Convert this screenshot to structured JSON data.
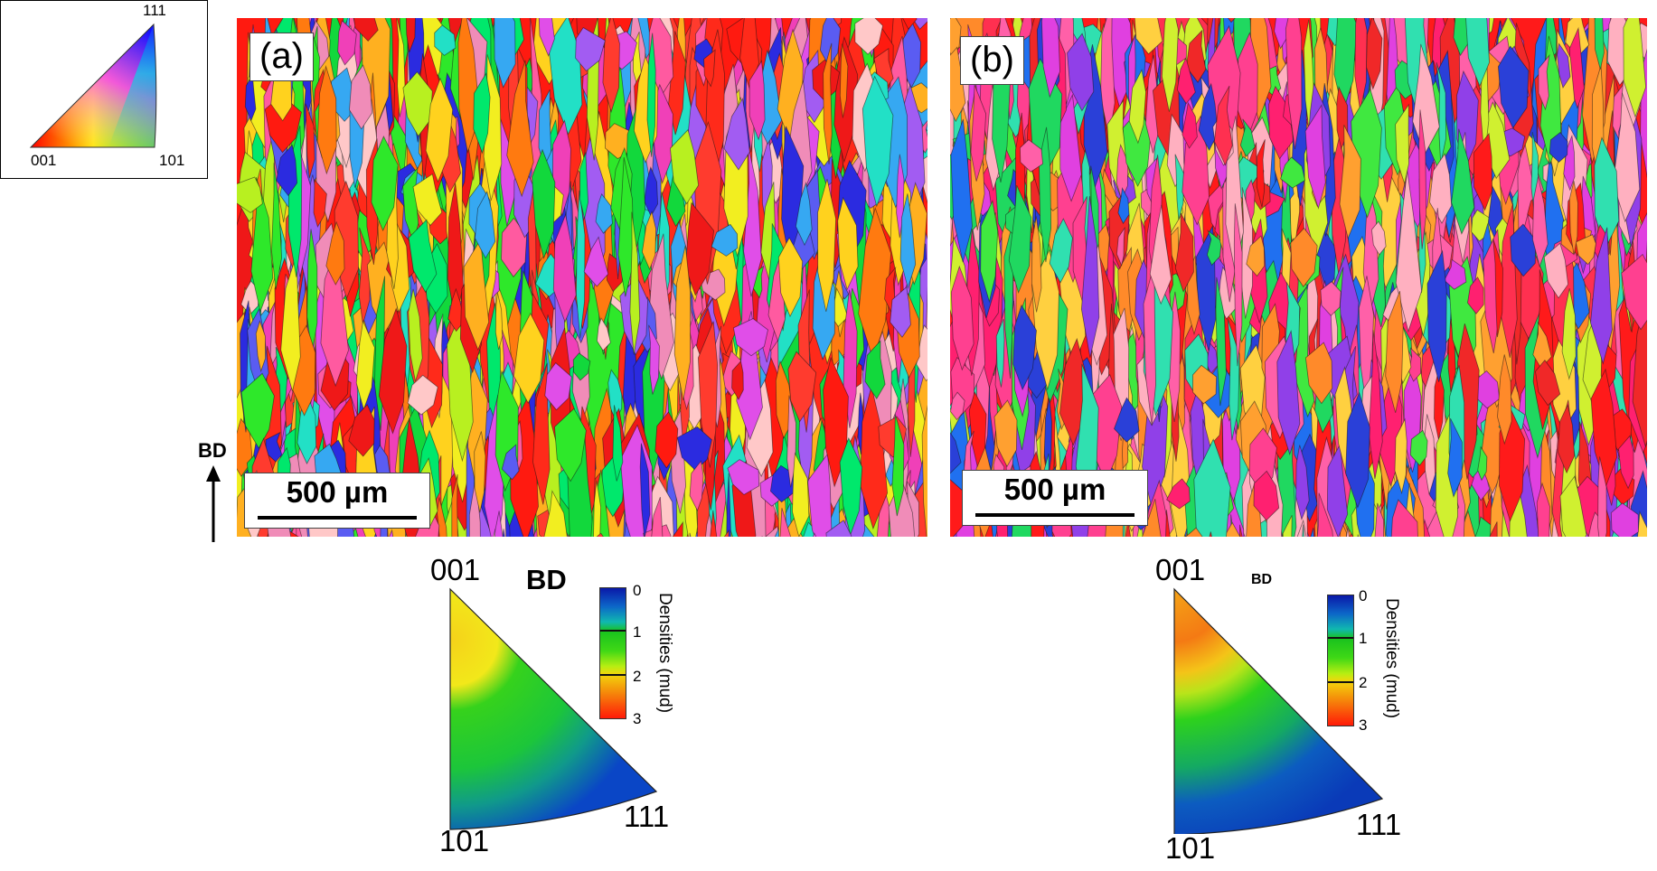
{
  "ipf_key": {
    "corners": {
      "top": "111",
      "left": "001",
      "right": "101"
    }
  },
  "panels": [
    {
      "label": "(a)",
      "scale_bar": "500 µm"
    },
    {
      "label": "(b)",
      "scale_bar": "500 µm"
    }
  ],
  "build_direction_label": "BD",
  "pole_figures": [
    {
      "title": "BD",
      "corners": {
        "top": "001",
        "bottom_left": "101",
        "right": "111"
      },
      "colorbar": {
        "label": "Densities (mud)",
        "ticks": [
          "0",
          "1",
          "2",
          "3"
        ]
      }
    },
    {
      "title": "BD",
      "corners": {
        "top": "001",
        "bottom_left": "101",
        "right": "111"
      },
      "colorbar": {
        "label": "Densities (mud)",
        "ticks": [
          "0",
          "1",
          "2",
          "3"
        ]
      }
    }
  ],
  "palette": {
    "ebsd_a": [
      "#ff1a10",
      "#ff2a1a",
      "#ff3b2e",
      "#ef1818",
      "#ff7a10",
      "#ffb020",
      "#ffd21e",
      "#f2ee20",
      "#b8f020",
      "#2ee82a",
      "#12d83c",
      "#00e86c",
      "#22e0c6",
      "#36a8f2",
      "#5a5cf2",
      "#2b2be0",
      "#a25cf2",
      "#e04ee8",
      "#f040b8",
      "#ff5aa0",
      "#f08cb8",
      "#ffc8c8"
    ],
    "ebsd_b": [
      "#ff1a1a",
      "#f02828",
      "#ff3050",
      "#ff2070",
      "#ff4090",
      "#ff60a8",
      "#ff8a2a",
      "#ffa030",
      "#ffd040",
      "#d0f030",
      "#40e840",
      "#20d860",
      "#30e0b0",
      "#2070f0",
      "#2a40d8",
      "#9040e8",
      "#e040e0",
      "#ffb0c0"
    ],
    "scale": [
      "#0a18a8",
      "#19c21e",
      "#f2d60c",
      "#ff1a08"
    ]
  }
}
